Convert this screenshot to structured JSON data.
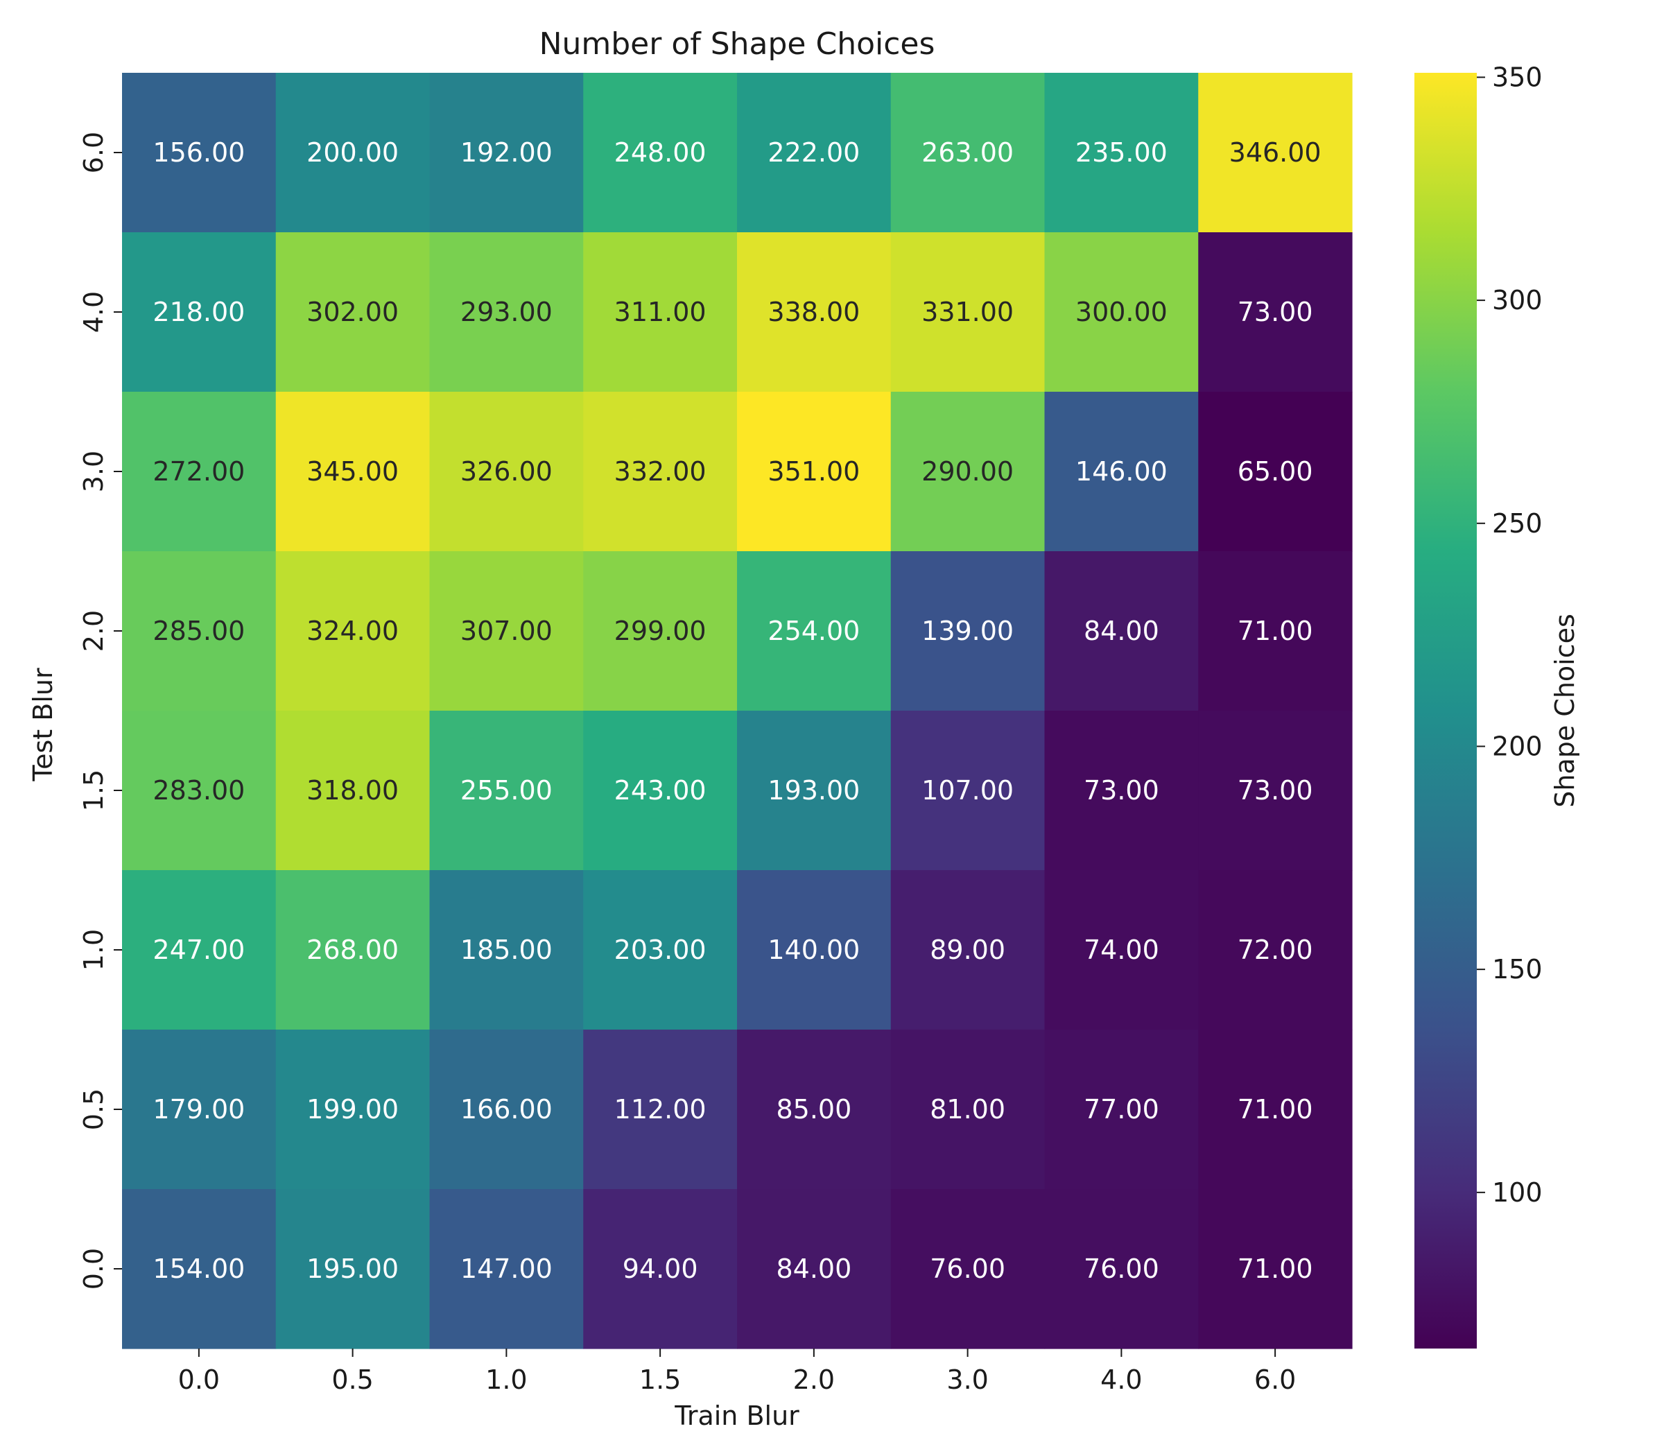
{
  "chart_data": {
    "type": "heatmap",
    "title": "Number of Shape Choices",
    "xlabel": "Train Blur",
    "ylabel": "Test Blur",
    "x_categories": [
      "0.0",
      "0.5",
      "1.0",
      "1.5",
      "2.0",
      "3.0",
      "4.0",
      "6.0"
    ],
    "y_categories": [
      "6.0",
      "4.0",
      "3.0",
      "2.0",
      "1.5",
      "1.0",
      "0.5",
      "0.0"
    ],
    "values": [
      [
        156,
        200,
        192,
        248,
        222,
        263,
        235,
        346
      ],
      [
        218,
        302,
        293,
        311,
        338,
        331,
        300,
        73
      ],
      [
        272,
        345,
        326,
        332,
        351,
        290,
        146,
        65
      ],
      [
        285,
        324,
        307,
        299,
        254,
        139,
        84,
        71
      ],
      [
        283,
        318,
        255,
        243,
        193,
        107,
        73,
        73
      ],
      [
        247,
        268,
        185,
        203,
        140,
        89,
        74,
        72
      ],
      [
        179,
        199,
        166,
        112,
        85,
        81,
        77,
        71
      ],
      [
        154,
        195,
        147,
        94,
        84,
        76,
        76,
        71
      ]
    ],
    "value_format": "2 decimals",
    "colormap": "viridis",
    "colorbar": {
      "label": "Shape Choices",
      "ticks": [
        100,
        150,
        200,
        250,
        300,
        350
      ],
      "range": [
        65,
        351
      ]
    }
  }
}
